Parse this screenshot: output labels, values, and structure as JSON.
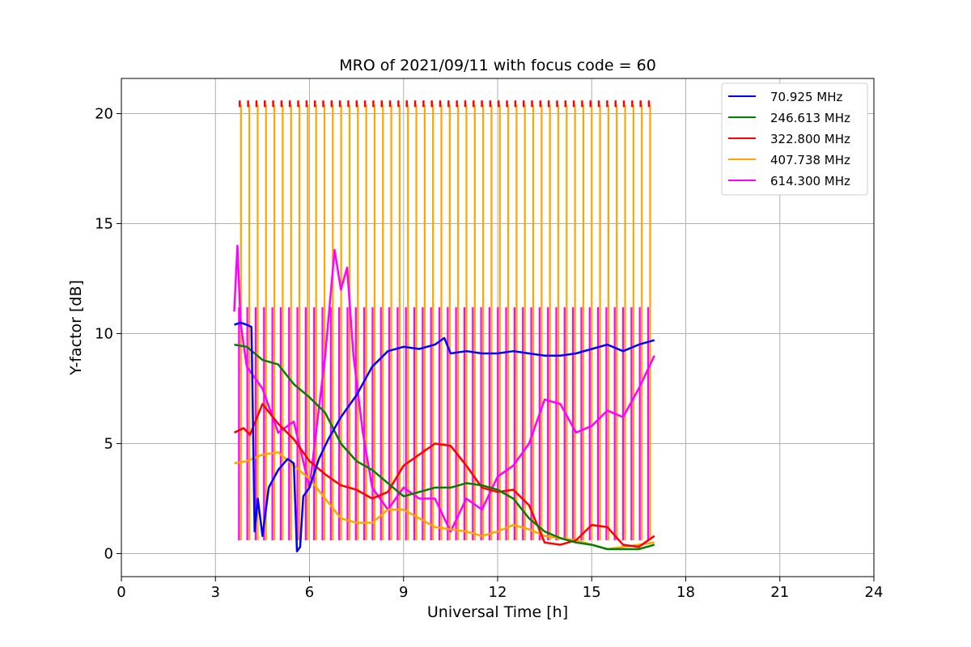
{
  "chart_data": {
    "type": "line",
    "title": "MRO of 2021/09/11 with focus code = 60",
    "xlabel": "Universal Time [h]",
    "ylabel": "Y-factor [dB]",
    "xlim": [
      0,
      24
    ],
    "ylim": [
      -1.05,
      21.6
    ],
    "xticks": [
      0,
      3,
      6,
      9,
      12,
      15,
      18,
      21,
      24
    ],
    "yticks": [
      0,
      5,
      10,
      15,
      20
    ],
    "grid": true,
    "legend_position": "top-right",
    "spike_series": {
      "start": 3.75,
      "end": 16.8,
      "count": 50,
      "high": 20.4,
      "mid": 11.2,
      "colors": [
        "#ff0000",
        "#ffa500",
        "#ff00ff"
      ]
    },
    "series": [
      {
        "name": "70.925 MHz",
        "color": "#0000ff",
        "x": [
          3.6,
          3.8,
          4.0,
          4.15,
          4.25,
          4.35,
          4.5,
          4.7,
          5.0,
          5.3,
          5.5,
          5.6,
          5.7,
          5.8,
          6.0,
          6.3,
          6.6,
          7.0,
          7.5,
          8.0,
          8.5,
          9.0,
          9.5,
          10.0,
          10.3,
          10.5,
          11.0,
          11.5,
          12.0,
          12.5,
          13.0,
          13.5,
          14.0,
          14.5,
          15.0,
          15.5,
          16.0,
          16.5,
          17.0
        ],
        "y": [
          10.4,
          10.5,
          10.4,
          10.3,
          1.0,
          2.5,
          0.8,
          3.0,
          3.8,
          4.3,
          4.1,
          0.1,
          0.3,
          2.6,
          3.0,
          4.3,
          5.2,
          6.2,
          7.2,
          8.5,
          9.2,
          9.4,
          9.3,
          9.5,
          9.8,
          9.1,
          9.2,
          9.1,
          9.1,
          9.2,
          9.1,
          9.0,
          9.0,
          9.1,
          9.3,
          9.5,
          9.2,
          9.5,
          9.7
        ]
      },
      {
        "name": "246.613 MHz",
        "color": "#008000",
        "x": [
          3.6,
          4.0,
          4.5,
          5.0,
          5.5,
          6.0,
          6.5,
          7.0,
          7.5,
          8.0,
          8.5,
          9.0,
          9.5,
          10.0,
          10.5,
          11.0,
          11.5,
          12.0,
          12.5,
          13.0,
          13.5,
          14.0,
          14.5,
          15.0,
          15.5,
          16.0,
          16.5,
          17.0
        ],
        "y": [
          9.5,
          9.4,
          8.8,
          8.6,
          7.7,
          7.1,
          6.4,
          5.0,
          4.2,
          3.8,
          3.2,
          2.6,
          2.8,
          3.0,
          3.0,
          3.2,
          3.1,
          2.9,
          2.5,
          1.6,
          1.0,
          0.7,
          0.5,
          0.4,
          0.2,
          0.2,
          0.2,
          0.4
        ]
      },
      {
        "name": "322.800 MHz",
        "color": "#ff0000",
        "x": [
          3.6,
          3.9,
          4.1,
          4.5,
          5.0,
          5.5,
          6.0,
          6.5,
          7.0,
          7.5,
          8.0,
          8.5,
          9.0,
          9.5,
          10.0,
          10.5,
          11.0,
          11.5,
          12.0,
          12.5,
          13.0,
          13.5,
          14.0,
          14.5,
          15.0,
          15.5,
          16.0,
          16.5,
          17.0
        ],
        "y": [
          5.5,
          5.7,
          5.4,
          6.8,
          5.9,
          5.2,
          4.2,
          3.6,
          3.1,
          2.9,
          2.5,
          2.8,
          4.0,
          4.5,
          5.0,
          4.9,
          4.0,
          3.0,
          2.8,
          2.9,
          2.2,
          0.5,
          0.4,
          0.6,
          1.3,
          1.2,
          0.4,
          0.3,
          0.8
        ]
      },
      {
        "name": "407.738 MHz",
        "color": "#ffa500",
        "x": [
          3.6,
          4.0,
          4.5,
          5.0,
          5.5,
          6.0,
          6.5,
          7.0,
          7.5,
          8.0,
          8.5,
          9.0,
          9.5,
          10.0,
          10.5,
          11.0,
          11.5,
          12.0,
          12.5,
          13.0,
          13.5,
          14.0,
          14.5,
          15.0,
          15.5,
          16.0,
          16.5,
          17.0
        ],
        "y": [
          4.1,
          4.2,
          4.5,
          4.6,
          4.0,
          3.4,
          2.5,
          1.6,
          1.4,
          1.4,
          2.0,
          2.0,
          1.6,
          1.2,
          1.1,
          1.0,
          0.8,
          1.0,
          1.3,
          1.1,
          0.8,
          0.7,
          0.6,
          0.4,
          0.2,
          0.3,
          0.4,
          0.5
        ]
      },
      {
        "name": "614.300 MHz",
        "color": "#ff00ff",
        "x": [
          3.6,
          3.7,
          3.8,
          4.0,
          4.5,
          5.0,
          5.5,
          6.0,
          6.5,
          6.8,
          7.0,
          7.2,
          7.4,
          7.7,
          8.0,
          8.5,
          9.0,
          9.5,
          10.0,
          10.5,
          11.0,
          11.5,
          12.0,
          12.5,
          13.0,
          13.5,
          14.0,
          14.5,
          15.0,
          15.5,
          16.0,
          16.5,
          17.0
        ],
        "y": [
          11.0,
          14.0,
          10.5,
          8.5,
          7.5,
          5.5,
          6.0,
          3.0,
          9.0,
          13.8,
          12.0,
          13.0,
          9.0,
          5.5,
          3.0,
          2.0,
          3.0,
          2.5,
          2.5,
          1.0,
          2.5,
          2.0,
          3.5,
          4.0,
          5.0,
          7.0,
          6.8,
          5.5,
          5.8,
          6.5,
          6.2,
          7.5,
          9.0
        ]
      }
    ]
  }
}
